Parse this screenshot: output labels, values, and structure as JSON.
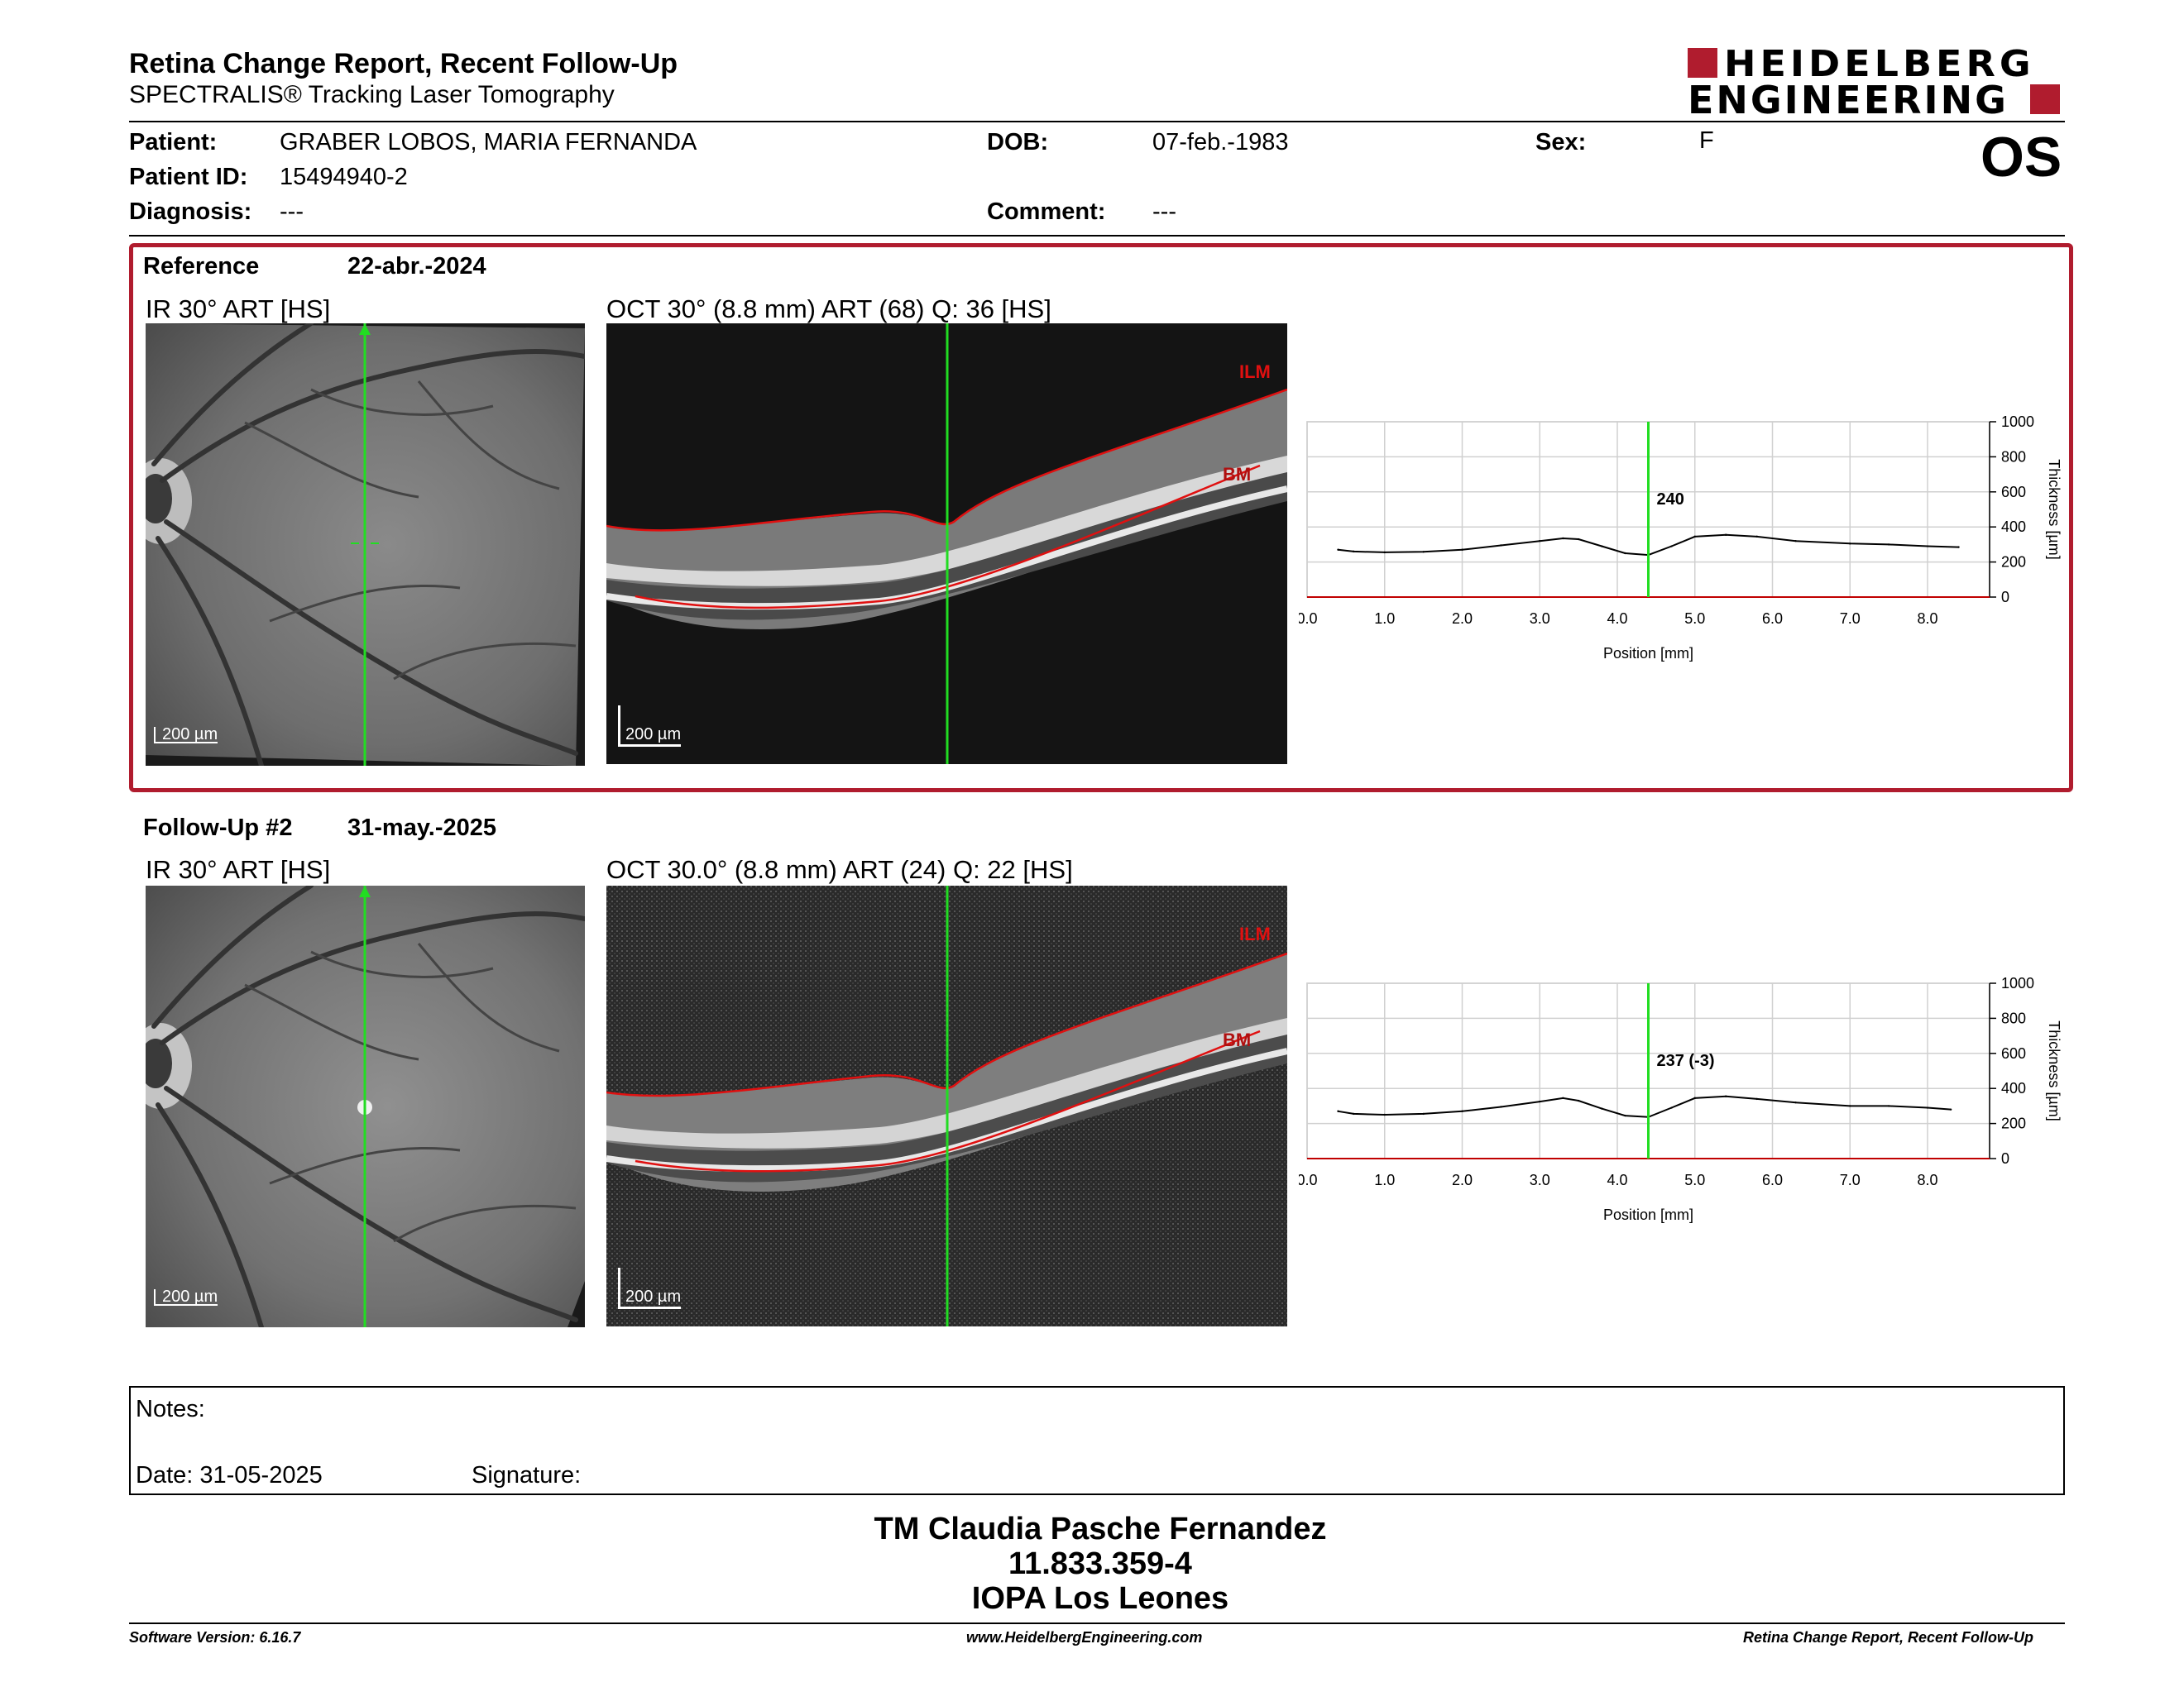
{
  "header": {
    "title": "Retina Change Report, Recent Follow-Up",
    "subtitle": "SPECTRALIS® Tracking Laser Tomography",
    "logo_line1": "HEIDELBERG",
    "logo_line2": "ENGINEERING",
    "eye": "OS"
  },
  "patient": {
    "patient_label": "Patient:",
    "patient_value": "GRABER LOBOS, MARIA FERNANDA",
    "id_label": "Patient ID:",
    "id_value": "15494940-2",
    "diagnosis_label": "Diagnosis:",
    "diagnosis_value": "---",
    "dob_label": "DOB:",
    "dob_value": "07-feb.-1983",
    "comment_label": "Comment:",
    "comment_value": "---",
    "sex_label": "Sex:",
    "sex_value": "F"
  },
  "reference": {
    "label": "Reference",
    "date": "22-abr.-2024",
    "ir_title": "IR 30° ART [HS]",
    "oct_title": "OCT 30° (8.8 mm) ART (68) Q: 36 [HS]",
    "ir_scale": "200 µm",
    "oct_scale": "200 µm",
    "ilm_label": "ILM",
    "bm_label": "BM"
  },
  "followup": {
    "label": "Follow-Up #2",
    "date": "31-may.-2025",
    "ir_title": "IR 30° ART [HS]",
    "oct_title": "OCT 30.0° (8.8 mm) ART (24) Q: 22 [HS]",
    "ir_scale": "200 µm",
    "oct_scale": "200 µm",
    "ilm_label": "ILM",
    "bm_label": "BM"
  },
  "chart_data": [
    {
      "type": "line",
      "xlabel": "Position [mm]",
      "ylabel": "Thickness [µm]",
      "xlim": [
        0,
        8.8
      ],
      "ylim": [
        0,
        1000
      ],
      "xticks": [
        "0.0",
        "1.0",
        "2.0",
        "3.0",
        "4.0",
        "5.0",
        "6.0",
        "7.0",
        "8.0"
      ],
      "yticks": [
        "0",
        "200",
        "400",
        "600",
        "800",
        "1000"
      ],
      "marker_x": 4.4,
      "marker_label": "240",
      "grid": true,
      "series": [
        {
          "x": [
            0.4,
            0.6,
            1.0,
            1.5,
            2.0,
            2.5,
            3.0,
            3.3,
            3.5,
            3.8,
            4.1,
            4.4,
            4.7,
            5.0,
            5.4,
            5.8,
            6.3,
            7.0,
            7.5,
            8.0,
            8.4
          ],
          "y": [
            270,
            260,
            255,
            258,
            270,
            295,
            320,
            335,
            330,
            290,
            250,
            240,
            290,
            345,
            355,
            345,
            320,
            305,
            300,
            290,
            285
          ]
        }
      ]
    },
    {
      "type": "line",
      "xlabel": "Position [mm]",
      "ylabel": "Thickness [µm]",
      "xlim": [
        0,
        8.8
      ],
      "ylim": [
        0,
        1000
      ],
      "xticks": [
        "0.0",
        "1.0",
        "2.0",
        "3.0",
        "4.0",
        "5.0",
        "6.0",
        "7.0",
        "8.0"
      ],
      "yticks": [
        "0",
        "200",
        "400",
        "600",
        "800",
        "1000"
      ],
      "marker_x": 4.4,
      "marker_label": "237 (-3)",
      "grid": true,
      "series": [
        {
          "x": [
            0.4,
            0.6,
            1.0,
            1.5,
            2.0,
            2.5,
            3.0,
            3.3,
            3.5,
            3.8,
            4.1,
            4.4,
            4.7,
            5.0,
            5.4,
            5.8,
            6.3,
            7.0,
            7.5,
            8.0,
            8.3
          ],
          "y": [
            270,
            255,
            250,
            255,
            270,
            295,
            325,
            345,
            330,
            285,
            245,
            237,
            290,
            345,
            355,
            340,
            320,
            300,
            300,
            290,
            280
          ]
        }
      ]
    }
  ],
  "notes": {
    "notes_label": "Notes:",
    "date_text": "Date: 31-05-2025",
    "signature_label": "Signature:"
  },
  "signature_block": {
    "line1": "TM Claudia Pasche Fernandez",
    "line2": "11.833.359-4",
    "line3": "IOPA Los Leones"
  },
  "footer": {
    "software": "Software Version: 6.16.7",
    "website": "www.HeidelbergEngineering.com",
    "report_name": "Retina Change Report, Recent Follow-Up"
  },
  "colors": {
    "accent": "#b01c2e",
    "marker_green": "#22dd22",
    "segmentation_red": "#e01010"
  }
}
